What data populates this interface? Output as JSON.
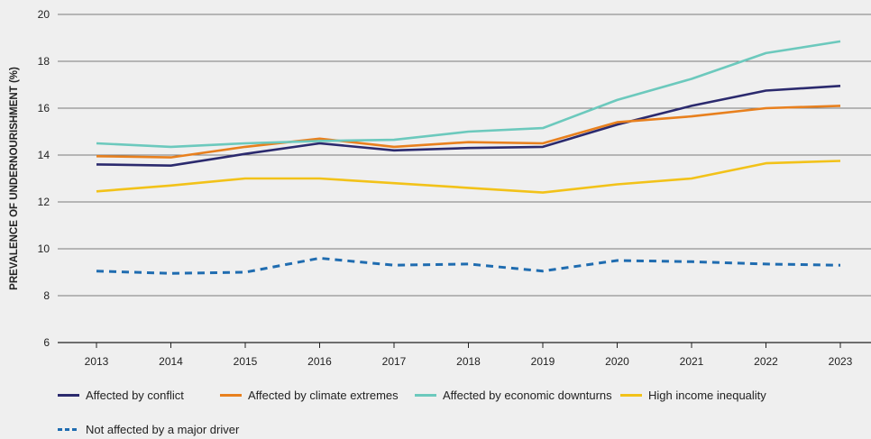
{
  "chart_data": {
    "type": "line",
    "title": "",
    "xlabel": "",
    "ylabel": "PREVALENCE OF UNDERNOURISHMENT (%)",
    "ylim": [
      6,
      20
    ],
    "yticks": [
      6,
      8,
      10,
      12,
      14,
      16,
      18,
      20
    ],
    "grid": "horizontal",
    "legend_position": "bottom",
    "x": [
      "2013",
      "2014",
      "2015",
      "2016",
      "2017",
      "2018",
      "2019",
      "2020",
      "2021",
      "2022",
      "2023"
    ],
    "series": [
      {
        "name": "Affected by conflict",
        "color": "#2b2a6e",
        "dash": "solid",
        "values": [
          13.6,
          13.55,
          14.05,
          14.5,
          14.2,
          14.3,
          14.35,
          15.3,
          16.1,
          16.75,
          16.95
        ]
      },
      {
        "name": "Affected by climate extremes",
        "color": "#e8801e",
        "dash": "solid",
        "values": [
          13.95,
          13.9,
          14.35,
          14.7,
          14.35,
          14.55,
          14.5,
          15.4,
          15.65,
          16.0,
          16.1
        ]
      },
      {
        "name": "Affected by economic downturns",
        "color": "#6cc9bd",
        "dash": "solid",
        "values": [
          14.5,
          14.35,
          14.5,
          14.6,
          14.65,
          15.0,
          15.15,
          16.35,
          17.25,
          18.35,
          18.85
        ]
      },
      {
        "name": "High income inequality",
        "color": "#f2c219",
        "dash": "solid",
        "values": [
          12.45,
          12.7,
          13.0,
          13.0,
          12.8,
          12.6,
          12.4,
          12.75,
          13.0,
          13.65,
          13.75
        ]
      },
      {
        "name": "Not affected by a major driver",
        "color": "#1f6cb0",
        "dash": "dashed",
        "values": [
          9.05,
          8.95,
          9.0,
          9.6,
          9.3,
          9.35,
          9.05,
          9.5,
          9.45,
          9.35,
          9.3
        ]
      }
    ]
  }
}
